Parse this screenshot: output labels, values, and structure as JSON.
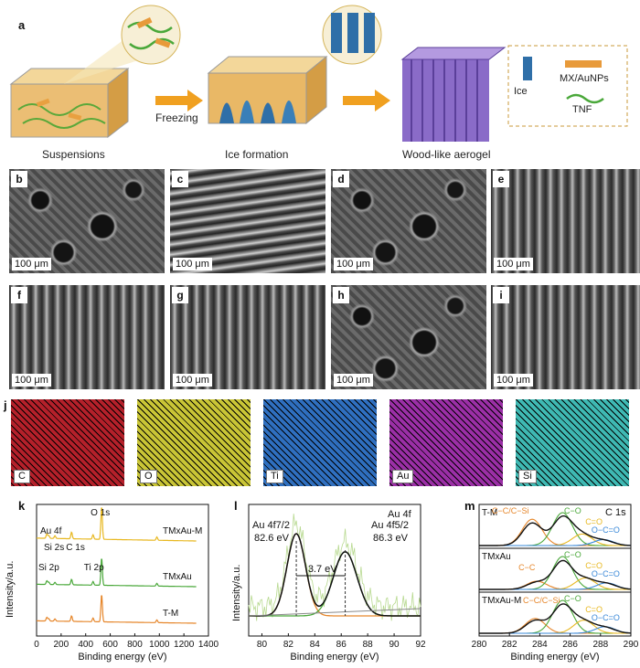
{
  "panel_a": {
    "label": "a",
    "steps": [
      "Suspensions",
      "Freezing",
      "Ice formation",
      "Wood-like aerogel"
    ],
    "legend": {
      "ice": "Ice",
      "mx": "MX/AuNPs",
      "tnf": "TNF"
    }
  },
  "sem": {
    "scale": "100 μm",
    "panels": [
      {
        "tag": "b",
        "style": "porous"
      },
      {
        "tag": "c",
        "style": "lamellar"
      },
      {
        "tag": "d",
        "style": "porous"
      },
      {
        "tag": "e",
        "style": "channels"
      },
      {
        "tag": "f",
        "style": "channels"
      },
      {
        "tag": "g",
        "style": "channels"
      },
      {
        "tag": "h",
        "style": "porous"
      },
      {
        "tag": "i",
        "style": "channels"
      }
    ]
  },
  "mapping": {
    "label": "j",
    "elements": [
      {
        "name": "C",
        "color": "#b4202a"
      },
      {
        "name": "O",
        "color": "#c9c536"
      },
      {
        "name": "Ti",
        "color": "#2f6fbf"
      },
      {
        "name": "Au",
        "color": "#9b2fa6"
      },
      {
        "name": "Si",
        "color": "#3fb9b3"
      }
    ]
  },
  "chart_data": [
    {
      "type": "line",
      "panel": "k",
      "xlabel": "Binding energy (eV)",
      "ylabel": "Intensity/a.u.",
      "xlim": [
        0,
        1400
      ],
      "xticks": [
        "0",
        "200",
        "400",
        "600",
        "800",
        "1000",
        "1200",
        "1400"
      ],
      "peak_labels": [
        "O 1s",
        "Au 4f",
        "Si 2s",
        "Si 2p",
        "C 1s",
        "Ti 2p"
      ],
      "series": [
        {
          "name": "TMxAu-M",
          "color": "#e8b820"
        },
        {
          "name": "TMxAu",
          "color": "#4aa83a"
        },
        {
          "name": "T-M",
          "color": "#e6862a"
        }
      ]
    },
    {
      "type": "line",
      "panel": "l",
      "title": "Au 4f",
      "xlabel": "Binding energy (eV)",
      "ylabel": "Intensity/a.u.",
      "xlim": [
        79,
        92
      ],
      "xticks": [
        "80",
        "82",
        "84",
        "86",
        "88",
        "90",
        "92"
      ],
      "annotations": [
        "Au 4f7/2",
        "82.6 eV",
        "Au 4f5/2",
        "86.3 eV",
        "3.7 eV"
      ],
      "peaks": [
        {
          "center": 82.6,
          "height": 1.0
        },
        {
          "center": 86.3,
          "height": 0.78
        }
      ]
    },
    {
      "type": "line",
      "panel": "m",
      "title": "C 1s",
      "xlabel": "Binding energy (eV)",
      "xlim": [
        280,
        290
      ],
      "xticks": [
        "280",
        "282",
        "284",
        "286",
        "288",
        "290"
      ],
      "subpanels": [
        {
          "name": "T-M",
          "labels": [
            "C−C/C−Si",
            "C−O",
            "C=O",
            "O−C=O"
          ]
        },
        {
          "name": "TMxAu",
          "labels": [
            "C−C",
            "C−O",
            "C=O",
            "O−C=O"
          ]
        },
        {
          "name": "TMxAu-M",
          "labels": [
            "C−C/C−Si",
            "C−O",
            "C=O",
            "O−C=O"
          ]
        }
      ]
    }
  ]
}
